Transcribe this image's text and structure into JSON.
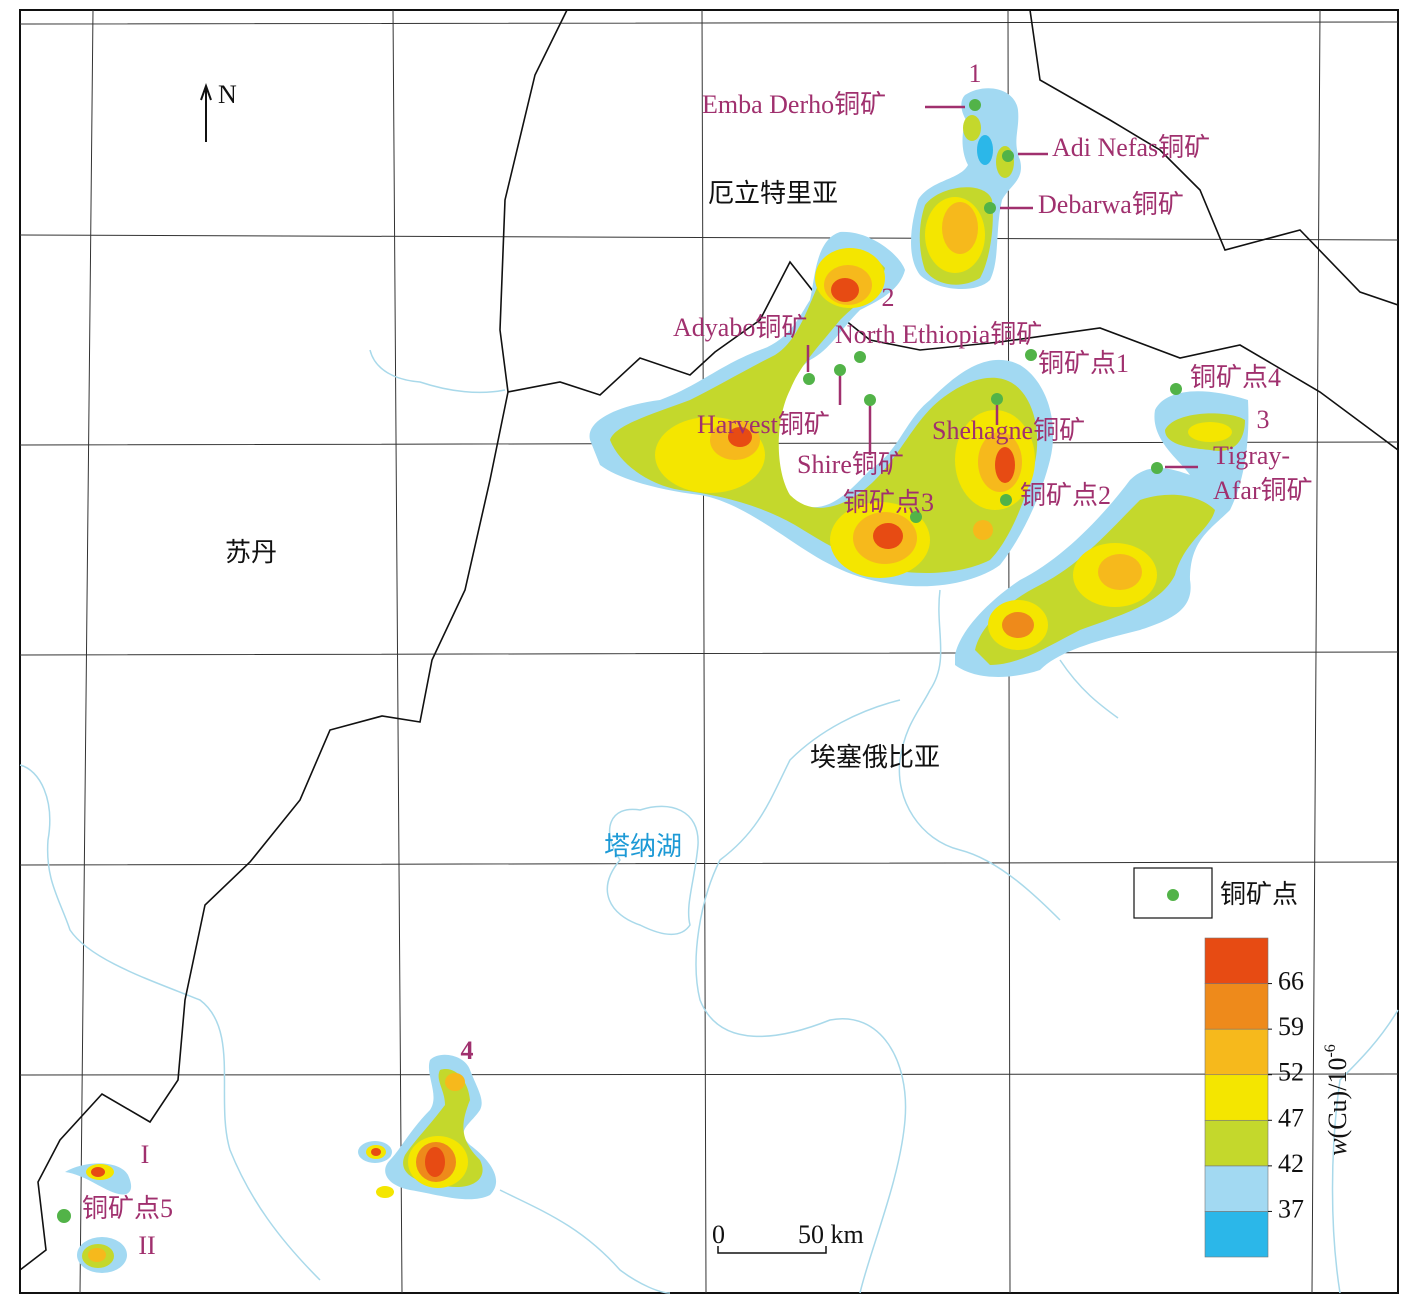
{
  "map": {
    "north": "N",
    "countries": [
      "厄立特里亚",
      "苏丹",
      "埃塞俄比亚"
    ],
    "lake": "塔纳湖",
    "anomalies": [
      "1",
      "2",
      "3",
      "4",
      "I",
      "II"
    ],
    "mines": [
      "Emba Derho铜矿",
      "Adi Nefas铜矿",
      "Debarwa铜矿",
      "Adyabo铜矿",
      "North Ethiopia铜矿",
      "Harvest铜矿",
      "Shire铜矿",
      "Shehagne铜矿"
    ],
    "tigray_afar": [
      "Tigray-",
      "Afar铜矿"
    ],
    "ore_points": [
      "铜矿点1",
      "铜矿点2",
      "铜矿点3",
      "铜矿点4",
      "铜矿点5"
    ]
  },
  "scale_bar": {
    "start": "0",
    "end": "50 km"
  },
  "legend": {
    "point": "铜矿点",
    "colors": [
      "#2bb7e9",
      "#a2d9f2",
      "#c4d82c",
      "#f4e600",
      "#f6b91c",
      "#ee8a1b",
      "#e74b13"
    ],
    "ticks": [
      37,
      42,
      47,
      52,
      59,
      66
    ],
    "unit": {
      "symbol": "w",
      "text": "(Cu)/10",
      "exponent": "-6"
    }
  }
}
